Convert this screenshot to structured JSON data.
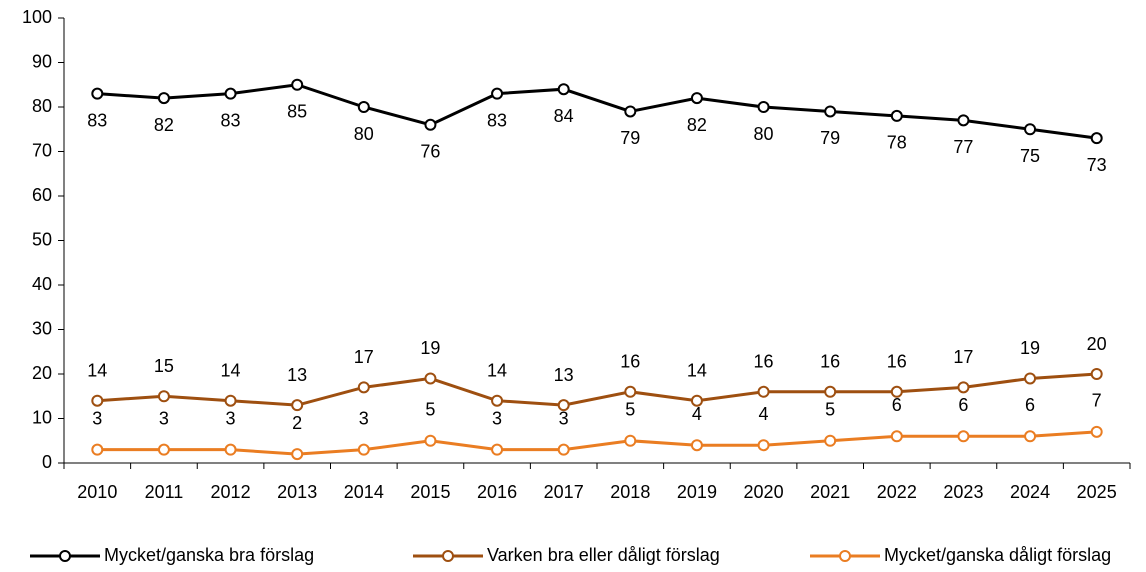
{
  "chart_data": {
    "type": "line",
    "categories": [
      "2010",
      "2011",
      "2012",
      "2013",
      "2014",
      "2015",
      "2016",
      "2017",
      "2018",
      "2019",
      "2020",
      "2021",
      "2022",
      "2023",
      "2024",
      "2025"
    ],
    "series": [
      {
        "name": "Mycket/ganska bra förslag",
        "color": "#000000",
        "values": [
          83,
          82,
          83,
          85,
          80,
          76,
          83,
          84,
          79,
          82,
          80,
          79,
          78,
          77,
          75,
          73
        ]
      },
      {
        "name": "Varken bra eller dåligt förslag",
        "color": "#9e4f10",
        "values": [
          14,
          15,
          14,
          13,
          17,
          19,
          14,
          13,
          16,
          14,
          16,
          16,
          16,
          17,
          19,
          20
        ]
      },
      {
        "name": "Mycket/ganska dåligt förslag",
        "color": "#ea7d22",
        "values": [
          3,
          3,
          3,
          2,
          3,
          5,
          3,
          3,
          5,
          4,
          4,
          5,
          6,
          6,
          6,
          7
        ]
      }
    ],
    "ylim": [
      0,
      100
    ],
    "yticks": [
      0,
      10,
      20,
      30,
      40,
      50,
      60,
      70,
      80,
      90,
      100
    ],
    "grid": false,
    "legend": "bottom"
  }
}
